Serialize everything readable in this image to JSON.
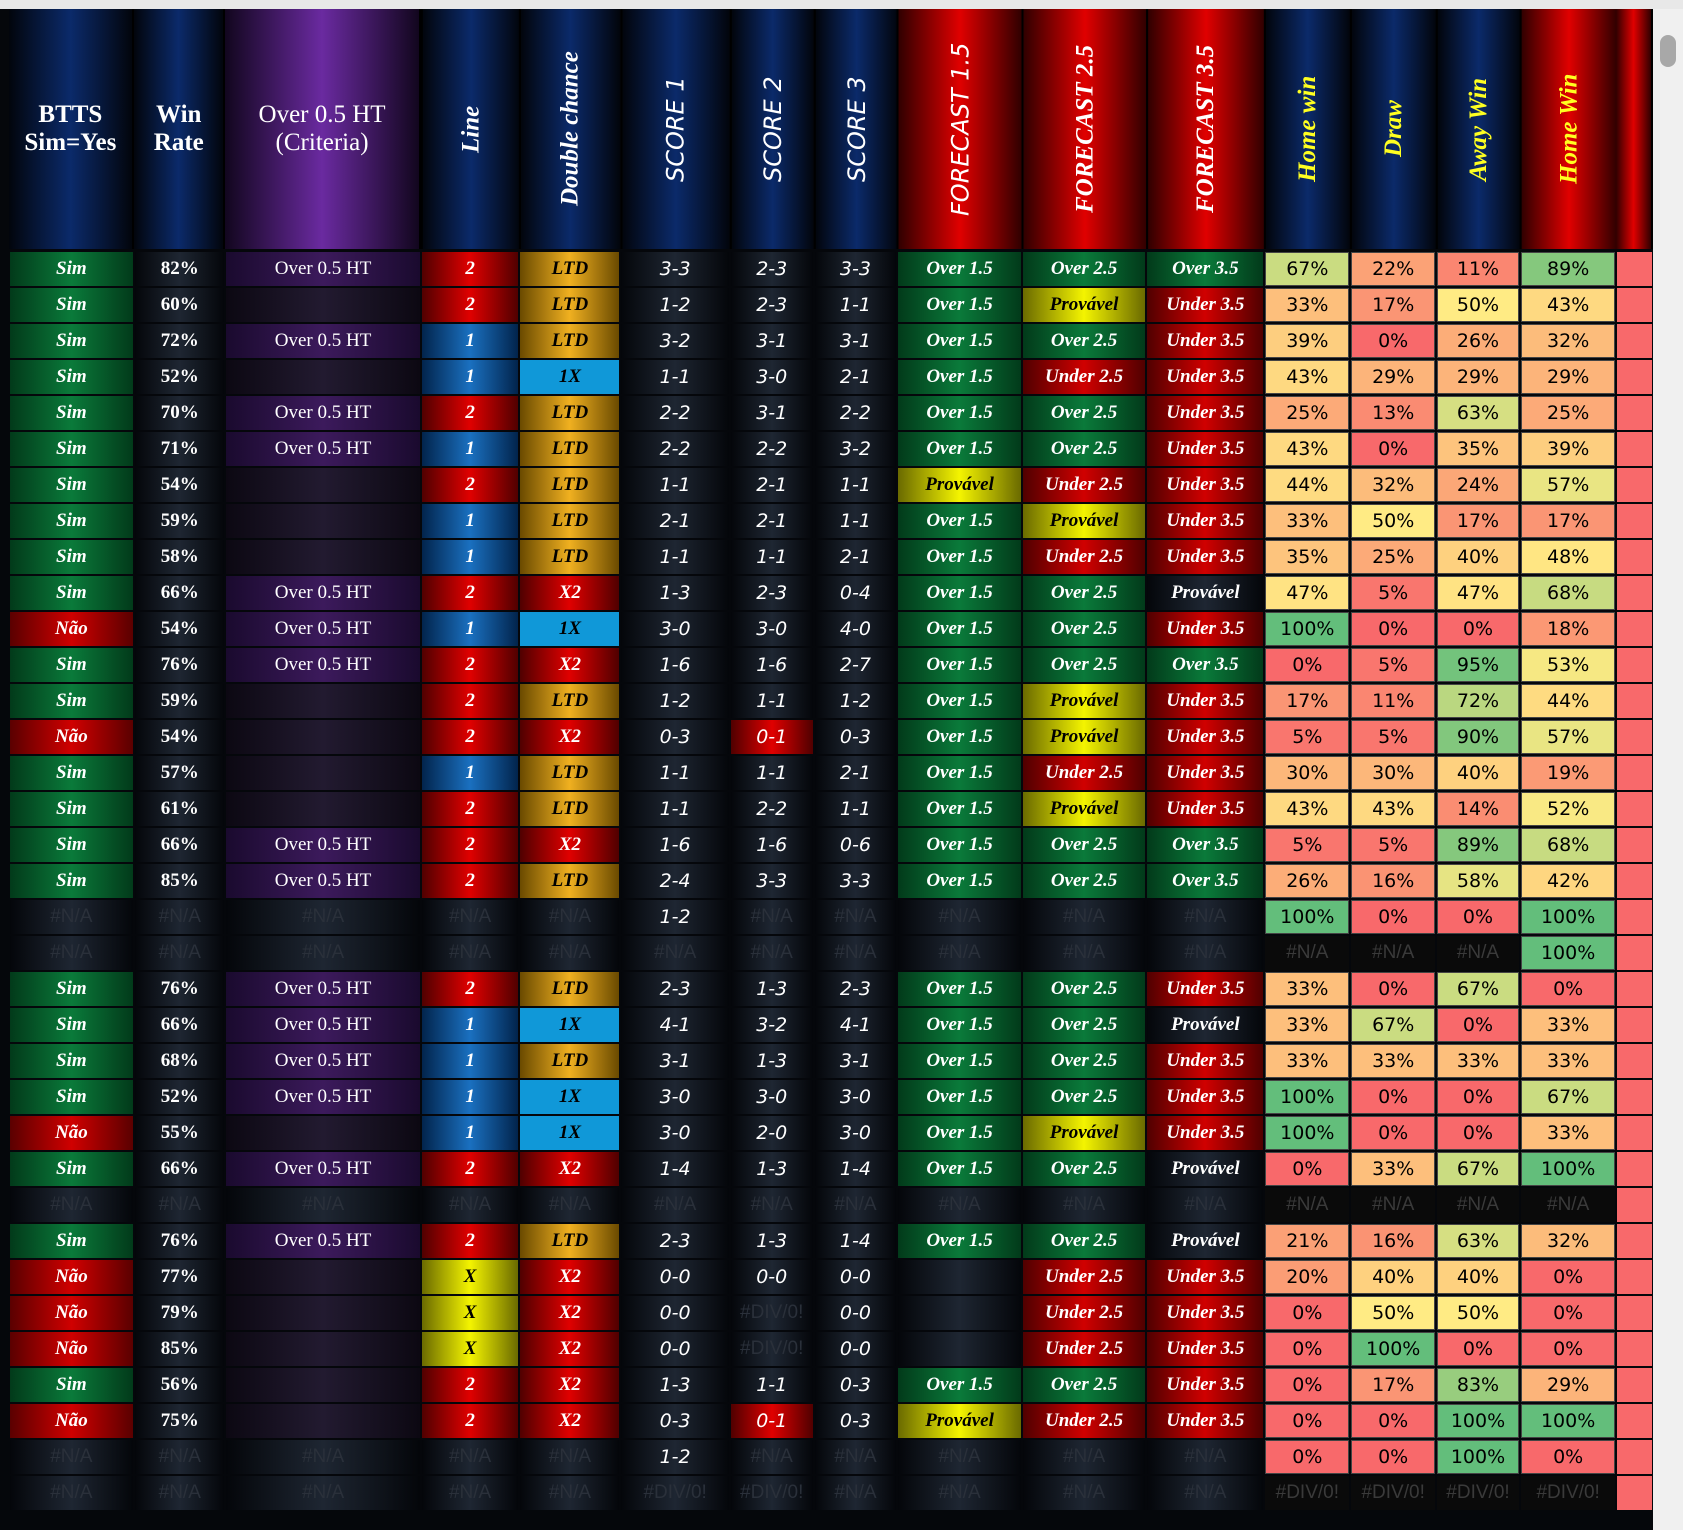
{
  "table": {
    "header": [
      "BTTS\nSim=Yes",
      "Win\nRate",
      "Over 0.5 HT\n(Criteria)",
      "Line",
      "Double chance",
      "SCORE 1",
      "SCORE 2",
      "SCORE 3",
      "FORECAST 1.5",
      "FORECAST 2.5",
      "FORECAST 3.5",
      "Home win",
      "Draw",
      "Away Win",
      "Home Win"
    ],
    "rows": [
      [
        "Sim",
        "82%",
        "Over 0.5 HT",
        "2",
        "LTD",
        "3-3",
        "2-3",
        "3-3",
        "Over 1.5",
        "Over 2.5",
        "Over 3.5",
        "67%",
        "22%",
        "11%",
        "89%"
      ],
      [
        "Sim",
        "60%",
        null,
        "2",
        "LTD",
        "1-2",
        "2-3",
        "1-1",
        "Over 1.5",
        "Provável",
        "Under 3.5",
        "33%",
        "17%",
        "50%",
        "43%"
      ],
      [
        "Sim",
        "72%",
        "Over 0.5 HT",
        "1",
        "LTD",
        "3-2",
        "3-1",
        "3-1",
        "Over 1.5",
        "Over 2.5",
        "Under 3.5",
        "39%",
        "0%",
        "26%",
        "32%"
      ],
      [
        "Sim",
        "52%",
        null,
        "1",
        "1X",
        "1-1",
        "3-0",
        "2-1",
        "Over 1.5",
        "Under 2.5",
        "Under 3.5",
        "43%",
        "29%",
        "29%",
        "29%"
      ],
      [
        "Sim",
        "70%",
        "Over 0.5 HT",
        "2",
        "LTD",
        "2-2",
        "3-1",
        "2-2",
        "Over 1.5",
        "Over 2.5",
        "Under 3.5",
        "25%",
        "13%",
        "63%",
        "25%"
      ],
      [
        "Sim",
        "71%",
        "Over 0.5 HT",
        "1",
        "LTD",
        "2-2",
        "2-2",
        "3-2",
        "Over 1.5",
        "Over 2.5",
        "Under 3.5",
        "43%",
        "0%",
        "35%",
        "39%"
      ],
      [
        "Sim",
        "54%",
        null,
        "2",
        "LTD",
        "1-1",
        "2-1",
        "1-1",
        "Provável",
        "Under 2.5",
        "Under 3.5",
        "44%",
        "32%",
        "24%",
        "57%"
      ],
      [
        "Sim",
        "59%",
        null,
        "1",
        "LTD",
        "2-1",
        "2-1",
        "1-1",
        "Over 1.5",
        "Provável",
        "Under 3.5",
        "33%",
        "50%",
        "17%",
        "17%"
      ],
      [
        "Sim",
        "58%",
        null,
        "1",
        "LTD",
        "1-1",
        "1-1",
        "2-1",
        "Over 1.5",
        "Under 2.5",
        "Under 3.5",
        "35%",
        "25%",
        "40%",
        "48%"
      ],
      [
        "Sim",
        "66%",
        "Over 0.5 HT",
        "2",
        "X2",
        "1-3",
        "2-3",
        "0-4",
        "Over 1.5",
        "Over 2.5",
        "Provável",
        "47%",
        "5%",
        "47%",
        "68%"
      ],
      [
        "Não",
        "54%",
        "Over 0.5 HT",
        "1",
        "1X",
        "3-0",
        "3-0",
        "4-0",
        "Over 1.5",
        "Over 2.5",
        "Under 3.5",
        "100%",
        "0%",
        "0%",
        "18%"
      ],
      [
        "Sim",
        "76%",
        "Over 0.5 HT",
        "2",
        "X2",
        "1-6",
        "1-6",
        "2-7",
        "Over 1.5",
        "Over 2.5",
        "Over 3.5",
        "0%",
        "5%",
        "95%",
        "53%"
      ],
      [
        "Sim",
        "59%",
        null,
        "2",
        "LTD",
        "1-2",
        "1-1",
        "1-2",
        "Over 1.5",
        "Provável",
        "Under 3.5",
        "17%",
        "11%",
        "72%",
        "44%"
      ],
      [
        "Não",
        "54%",
        null,
        "2",
        "X2",
        "0-3",
        "0-1",
        "0-3",
        "Over 1.5",
        "Provável",
        "Under 3.5",
        "5%",
        "5%",
        "90%",
        "57%"
      ],
      [
        "Sim",
        "57%",
        null,
        "1",
        "LTD",
        "1-1",
        "1-1",
        "2-1",
        "Over 1.5",
        "Under 2.5",
        "Under 3.5",
        "30%",
        "30%",
        "40%",
        "19%"
      ],
      [
        "Sim",
        "61%",
        null,
        "2",
        "LTD",
        "1-1",
        "2-2",
        "1-1",
        "Over 1.5",
        "Provável",
        "Under 3.5",
        "43%",
        "43%",
        "14%",
        "52%"
      ],
      [
        "Sim",
        "66%",
        "Over 0.5 HT",
        "2",
        "X2",
        "1-6",
        "1-6",
        "0-6",
        "Over 1.5",
        "Over 2.5",
        "Over 3.5",
        "5%",
        "5%",
        "89%",
        "68%"
      ],
      [
        "Sim",
        "85%",
        "Over 0.5 HT",
        "2",
        "LTD",
        "2-4",
        "3-3",
        "3-3",
        "Over 1.5",
        "Over 2.5",
        "Over 3.5",
        "26%",
        "16%",
        "58%",
        "42%"
      ],
      [
        "#N/A",
        "#N/A",
        "#N/A",
        "#N/A",
        "#N/A",
        "1-2",
        "#N/A",
        "#N/A",
        "#N/A",
        "#N/A",
        "#N/A",
        "100%",
        "0%",
        "0%",
        "100%"
      ],
      [
        "#N/A",
        "#N/A",
        "#N/A",
        "#N/A",
        "#N/A",
        "#N/A",
        "#N/A",
        "#N/A",
        "#N/A",
        "#N/A",
        "#N/A",
        "#N/A",
        "#N/A",
        "#N/A",
        "100%"
      ],
      [
        "Sim",
        "76%",
        "Over 0.5 HT",
        "2",
        "LTD",
        "2-3",
        "1-3",
        "2-3",
        "Over 1.5",
        "Over 2.5",
        "Under 3.5",
        "33%",
        "0%",
        "67%",
        "0%"
      ],
      [
        "Sim",
        "66%",
        "Over 0.5 HT",
        "1",
        "1X",
        "4-1",
        "3-2",
        "4-1",
        "Over 1.5",
        "Over 2.5",
        "Provável",
        "33%",
        "67%",
        "0%",
        "33%"
      ],
      [
        "Sim",
        "68%",
        "Over 0.5 HT",
        "1",
        "LTD",
        "3-1",
        "1-3",
        "3-1",
        "Over 1.5",
        "Over 2.5",
        "Under 3.5",
        "33%",
        "33%",
        "33%",
        "33%"
      ],
      [
        "Sim",
        "52%",
        "Over 0.5 HT",
        "1",
        "1X",
        "3-0",
        "3-0",
        "3-0",
        "Over 1.5",
        "Over 2.5",
        "Under 3.5",
        "100%",
        "0%",
        "0%",
        "67%"
      ],
      [
        "Não",
        "55%",
        null,
        "1",
        "1X",
        "3-0",
        "2-0",
        "3-0",
        "Over 1.5",
        "Provável",
        "Under 3.5",
        "100%",
        "0%",
        "0%",
        "33%"
      ],
      [
        "Sim",
        "66%",
        "Over 0.5 HT",
        "2",
        "X2",
        "1-4",
        "1-3",
        "1-4",
        "Over 1.5",
        "Over 2.5",
        "Provável",
        "0%",
        "33%",
        "67%",
        "100%"
      ],
      [
        "#N/A",
        "#N/A",
        "#N/A",
        "#N/A",
        "#N/A",
        "#N/A",
        "#N/A",
        "#N/A",
        "#N/A",
        "#N/A",
        "#N/A",
        "#N/A",
        "#N/A",
        "#N/A",
        "#N/A"
      ],
      [
        "Sim",
        "76%",
        "Over 0.5 HT",
        "2",
        "LTD",
        "2-3",
        "1-3",
        "1-4",
        "Over 1.5",
        "Over 2.5",
        "Provável",
        "21%",
        "16%",
        "63%",
        "32%"
      ],
      [
        "Não",
        "77%",
        null,
        "X",
        "X2",
        "0-0",
        "0-0",
        "0-0",
        null,
        "Under 2.5",
        "Under 3.5",
        "20%",
        "40%",
        "40%",
        "0%"
      ],
      [
        "Não",
        "79%",
        null,
        "X",
        "X2",
        "0-0",
        "#DIV/0!",
        "0-0",
        null,
        "Under 2.5",
        "Under 3.5",
        "0%",
        "50%",
        "50%",
        "0%"
      ],
      [
        "Não",
        "85%",
        null,
        "X",
        "X2",
        "0-0",
        "#DIV/0!",
        "0-0",
        null,
        "Under 2.5",
        "Under 3.5",
        "0%",
        "100%",
        "0%",
        "0%"
      ],
      [
        "Sim",
        "56%",
        null,
        "2",
        "X2",
        "1-3",
        "1-1",
        "0-3",
        "Over 1.5",
        "Over 2.5",
        "Under 3.5",
        "0%",
        "17%",
        "83%",
        "29%"
      ],
      [
        "Não",
        "75%",
        null,
        "2",
        "X2",
        "0-3",
        "0-1",
        "0-3",
        "Provável",
        "Under 2.5",
        "Under 3.5",
        "0%",
        "0%",
        "100%",
        "100%"
      ],
      [
        "#N/A",
        "#N/A",
        "#N/A",
        "#N/A",
        "#N/A",
        "1-2",
        "#N/A",
        "#N/A",
        "#N/A",
        "#N/A",
        "#N/A",
        "0%",
        "0%",
        "100%",
        "0%"
      ],
      [
        "#N/A",
        "#N/A",
        "#N/A",
        "#N/A",
        "#N/A",
        "#DIV/0!",
        "#DIV/0!",
        "#N/A",
        "#N/A",
        "#N/A",
        "#N/A",
        "#DIV/0!",
        "#DIV/0!",
        "#DIV/0!",
        "#DIV/0!"
      ]
    ]
  }
}
